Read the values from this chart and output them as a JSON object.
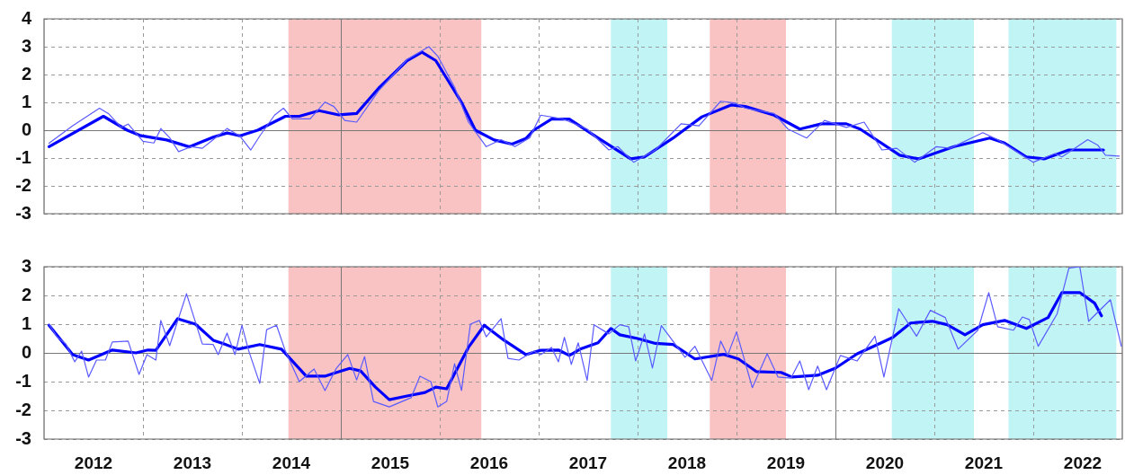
{
  "chart_data": [
    {
      "type": "line",
      "xlim": [
        2012,
        2022.9
      ],
      "ylim": [
        -3,
        4
      ],
      "yticks": [
        -3,
        -2,
        -1,
        0,
        1,
        2,
        3,
        4
      ],
      "xticks": [
        {
          "value": 2013,
          "label": null
        },
        {
          "value": 2014,
          "label": null
        },
        {
          "value": 2015,
          "label": null
        },
        {
          "value": 2016,
          "label": null
        },
        {
          "value": 2017,
          "label": null
        },
        {
          "value": 2018,
          "label": null
        },
        {
          "value": 2019,
          "label": null
        },
        {
          "value": 2020,
          "label": null
        },
        {
          "value": 2021,
          "label": null
        },
        {
          "value": 2022,
          "label": null
        }
      ],
      "tick_labels": "y",
      "grid": true,
      "legend": false,
      "marker": "none",
      "line_style": "solid",
      "bands": [
        {
          "axis": "x",
          "from": 2014.47,
          "to": 2016.42,
          "color": "#f9c3c3"
        },
        {
          "axis": "x",
          "from": 2017.73,
          "to": 2018.3,
          "color": "#c0f4f5"
        },
        {
          "axis": "x",
          "from": 2018.73,
          "to": 2019.5,
          "color": "#f9c3c3"
        },
        {
          "axis": "x",
          "from": 2020.57,
          "to": 2021.4,
          "color": "#c0f4f5"
        },
        {
          "axis": "x",
          "from": 2021.75,
          "to": 2022.84,
          "color": "#c0f4f5"
        }
      ],
      "series": [
        {
          "type": "line",
          "color": "#5a5aff",
          "x": [
            2012.05,
            2012.29,
            2012.56,
            2012.65,
            2012.78,
            2012.85,
            2013.0,
            2013.11,
            2013.18,
            2013.27,
            2013.36,
            2013.49,
            2013.6,
            2013.71,
            2013.85,
            2013.98,
            2014.09,
            2014.18,
            2014.33,
            2014.42,
            2014.51,
            2014.69,
            2014.84,
            2014.93,
            2015.04,
            2015.16,
            2015.38,
            2015.67,
            2015.89,
            2015.98,
            2016.15,
            2016.29,
            2016.47,
            2016.62,
            2016.76,
            2016.91,
            2017.02,
            2017.24,
            2017.49,
            2017.71,
            2017.8,
            2017.96,
            2018.18,
            2018.44,
            2018.62,
            2018.84,
            2018.98,
            2019.09,
            2019.38,
            2019.52,
            2019.71,
            2019.89,
            2020.11,
            2020.29,
            2020.47,
            2020.62,
            2020.8,
            2021.02,
            2021.16,
            2021.49,
            2021.64,
            2021.78,
            2022.0,
            2022.22,
            2022.29,
            2022.55,
            2022.65,
            2022.73,
            2022.87
          ],
          "values": [
            -0.47,
            0.16,
            0.79,
            0.6,
            0.1,
            0.22,
            -0.4,
            -0.46,
            0.06,
            -0.27,
            -0.77,
            -0.59,
            -0.65,
            -0.34,
            0.06,
            -0.21,
            -0.71,
            -0.21,
            0.54,
            0.79,
            0.41,
            0.41,
            1.01,
            0.85,
            0.35,
            0.29,
            1.41,
            2.54,
            3.0,
            2.66,
            1.54,
            0.29,
            -0.59,
            -0.34,
            -0.59,
            -0.27,
            0.54,
            0.41,
            0.04,
            -0.71,
            -0.59,
            -1.15,
            -0.71,
            0.23,
            0.16,
            1.04,
            0.98,
            0.79,
            0.6,
            0.04,
            -0.28,
            0.35,
            0.1,
            0.29,
            -0.71,
            -0.65,
            -1.15,
            -0.59,
            -0.65,
            -0.09,
            -0.34,
            -0.65,
            -1.15,
            -0.84,
            -0.96,
            -0.34,
            -0.53,
            -0.9,
            -0.93
          ]
        },
        {
          "type": "line",
          "color": "#0000ff",
          "x": [
            2012.05,
            2012.6,
            2012.84,
            2012.98,
            2013.24,
            2013.47,
            2013.71,
            2013.85,
            2013.98,
            2014.16,
            2014.44,
            2014.58,
            2014.78,
            2014.98,
            2015.16,
            2015.38,
            2015.67,
            2015.82,
            2015.96,
            2016.22,
            2016.36,
            2016.55,
            2016.73,
            2016.87,
            2016.95,
            2017.13,
            2017.31,
            2017.6,
            2017.93,
            2018.07,
            2018.36,
            2018.65,
            2018.95,
            2019.09,
            2019.38,
            2019.64,
            2019.86,
            2020.11,
            2020.25,
            2020.65,
            2020.84,
            2021.2,
            2021.56,
            2021.71,
            2021.93,
            2022.11,
            2022.36,
            2022.71
          ],
          "values": [
            -0.59,
            0.5,
            0.0,
            -0.2,
            -0.35,
            -0.6,
            -0.25,
            -0.1,
            -0.2,
            0.0,
            0.5,
            0.5,
            0.7,
            0.55,
            0.6,
            1.5,
            2.5,
            2.8,
            2.5,
            1.0,
            0.0,
            -0.35,
            -0.5,
            -0.3,
            0.0,
            0.4,
            0.4,
            -0.28,
            -1.03,
            -0.96,
            -0.28,
            0.48,
            0.91,
            0.85,
            0.54,
            0.04,
            0.23,
            0.23,
            0.04,
            -0.9,
            -1.03,
            -0.59,
            -0.28,
            -0.46,
            -0.96,
            -1.03,
            -0.71,
            -0.71
          ]
        }
      ]
    },
    {
      "type": "line",
      "xlim": [
        2012,
        2022.9
      ],
      "ylim": [
        -3,
        3
      ],
      "yticks": [
        -3,
        -2,
        -1,
        0,
        1,
        2,
        3
      ],
      "xticks": [
        {
          "value": 2012.5,
          "label": "2012"
        },
        {
          "value": 2013,
          "label": null
        },
        {
          "value": 2013.5,
          "label": "2013"
        },
        {
          "value": 2014,
          "label": null
        },
        {
          "value": 2014.5,
          "label": "2014"
        },
        {
          "value": 2015,
          "label": null
        },
        {
          "value": 2015.5,
          "label": "2015"
        },
        {
          "value": 2016,
          "label": null
        },
        {
          "value": 2016.5,
          "label": "2016"
        },
        {
          "value": 2017,
          "label": null
        },
        {
          "value": 2017.5,
          "label": "2017"
        },
        {
          "value": 2018,
          "label": null
        },
        {
          "value": 2018.5,
          "label": "2018"
        },
        {
          "value": 2019,
          "label": null
        },
        {
          "value": 2019.5,
          "label": "2019"
        },
        {
          "value": 2020,
          "label": null
        },
        {
          "value": 2020.5,
          "label": "2020"
        },
        {
          "value": 2021,
          "label": null
        },
        {
          "value": 2021.5,
          "label": "2021"
        },
        {
          "value": 2022,
          "label": null
        },
        {
          "value": 2022.5,
          "label": "2022"
        }
      ],
      "grid": true,
      "legend": false,
      "marker": "none",
      "line_style": "solid",
      "bands": [
        {
          "axis": "x",
          "from": 2014.47,
          "to": 2016.42,
          "color": "#f9c3c3"
        },
        {
          "axis": "x",
          "from": 2017.73,
          "to": 2018.3,
          "color": "#c0f4f5"
        },
        {
          "axis": "x",
          "from": 2018.73,
          "to": 2019.5,
          "color": "#f9c3c3"
        },
        {
          "axis": "x",
          "from": 2020.57,
          "to": 2021.4,
          "color": "#c0f4f5"
        },
        {
          "axis": "x",
          "from": 2021.75,
          "to": 2022.84,
          "color": "#c0f4f5"
        }
      ],
      "series": [
        {
          "type": "line",
          "color": "#5a5aff",
          "x": [
            2012.05,
            2012.13,
            2012.22,
            2012.31,
            2012.38,
            2012.45,
            2012.53,
            2012.62,
            2012.69,
            2012.85,
            2012.96,
            2013.04,
            2013.13,
            2013.18,
            2013.27,
            2013.44,
            2013.6,
            2013.71,
            2013.76,
            2013.85,
            2013.93,
            2014.0,
            2014.07,
            2014.18,
            2014.25,
            2014.35,
            2014.44,
            2014.58,
            2014.73,
            2014.84,
            2014.95,
            2015.07,
            2015.16,
            2015.24,
            2015.33,
            2015.49,
            2015.71,
            2015.8,
            2015.91,
            2015.98,
            2016.07,
            2016.15,
            2016.22,
            2016.31,
            2016.4,
            2016.47,
            2016.62,
            2016.69,
            2016.8,
            2016.95,
            2017.02,
            2017.13,
            2017.2,
            2017.26,
            2017.33,
            2017.4,
            2017.49,
            2017.56,
            2017.71,
            2017.82,
            2017.91,
            2017.98,
            2018.07,
            2018.15,
            2018.24,
            2018.48,
            2018.58,
            2018.75,
            2018.84,
            2018.91,
            2019.0,
            2019.16,
            2019.31,
            2019.42,
            2019.55,
            2019.64,
            2019.73,
            2019.82,
            2019.91,
            2020.05,
            2020.22,
            2020.4,
            2020.49,
            2020.64,
            2020.82,
            2020.96,
            2021.11,
            2021.24,
            2021.44,
            2021.55,
            2021.64,
            2021.8,
            2021.89,
            2021.96,
            2022.05,
            2022.24,
            2022.36,
            2022.47,
            2022.56,
            2022.78,
            2022.89
          ],
          "values": [
            1.0,
            0.56,
            0.31,
            -0.31,
            0.06,
            -0.84,
            -0.25,
            -0.25,
            0.38,
            0.41,
            -0.75,
            -0.06,
            -0.25,
            1.13,
            0.25,
            2.06,
            0.31,
            0.29,
            -0.06,
            0.69,
            -0.06,
            0.96,
            0.06,
            -1.06,
            0.81,
            0.96,
            0.06,
            -1.0,
            -0.56,
            -1.31,
            -0.56,
            -0.06,
            -0.94,
            -0.13,
            -1.69,
            -1.88,
            -1.56,
            -0.81,
            -1.0,
            -1.88,
            -1.69,
            -0.38,
            -1.31,
            1.0,
            1.13,
            0.56,
            1.19,
            -0.19,
            -0.25,
            0.06,
            -0.06,
            0.19,
            -0.31,
            0.54,
            -0.4,
            0.35,
            -0.96,
            0.98,
            0.66,
            0.98,
            0.91,
            -0.28,
            0.66,
            -0.53,
            0.95,
            -0.15,
            0.23,
            -0.96,
            0.41,
            -0.09,
            0.73,
            -1.21,
            -0.03,
            -0.84,
            -0.88,
            -0.28,
            -1.28,
            -0.46,
            -1.28,
            -0.09,
            -0.28,
            0.58,
            -0.84,
            1.54,
            0.58,
            1.48,
            1.23,
            0.13,
            0.79,
            2.1,
            0.91,
            0.79,
            1.25,
            1.16,
            0.23,
            1.35,
            2.95,
            3.0,
            1.1,
            1.85,
            0.23
          ]
        },
        {
          "type": "line",
          "color": "#0000ff",
          "x": [
            2012.05,
            2012.29,
            2012.45,
            2012.69,
            2012.93,
            2013.05,
            2013.13,
            2013.35,
            2013.53,
            2013.71,
            2013.82,
            2013.96,
            2014.18,
            2014.4,
            2014.65,
            2014.84,
            2014.95,
            2015.09,
            2015.2,
            2015.35,
            2015.49,
            2015.67,
            2015.85,
            2015.96,
            2016.07,
            2016.29,
            2016.45,
            2016.65,
            2016.87,
            2017.02,
            2017.2,
            2017.31,
            2017.42,
            2017.6,
            2017.73,
            2017.82,
            2018.0,
            2018.18,
            2018.36,
            2018.58,
            2018.87,
            2019.02,
            2019.2,
            2019.45,
            2019.56,
            2019.82,
            2020.0,
            2020.22,
            2020.4,
            2020.58,
            2020.76,
            2020.98,
            2021.13,
            2021.31,
            2021.49,
            2021.71,
            2021.93,
            2022.15,
            2022.29,
            2022.47,
            2022.62,
            2022.69
          ],
          "values": [
            0.96,
            -0.06,
            -0.25,
            0.1,
            0.0,
            0.1,
            0.09,
            1.19,
            1.0,
            0.44,
            0.31,
            0.13,
            0.29,
            0.13,
            -0.81,
            -0.81,
            -0.69,
            -0.54,
            -0.63,
            -1.19,
            -1.63,
            -1.5,
            -1.38,
            -1.19,
            -1.25,
            0.19,
            0.96,
            0.44,
            -0.06,
            0.09,
            0.1,
            -0.09,
            0.13,
            0.35,
            0.85,
            0.63,
            0.5,
            0.33,
            0.29,
            -0.21,
            -0.05,
            -0.21,
            -0.65,
            -0.68,
            -0.84,
            -0.78,
            -0.53,
            -0.03,
            0.25,
            0.54,
            1.04,
            1.1,
            0.98,
            0.63,
            0.98,
            1.13,
            0.85,
            1.23,
            2.1,
            2.1,
            1.73,
            1.29
          ]
        }
      ]
    }
  ]
}
